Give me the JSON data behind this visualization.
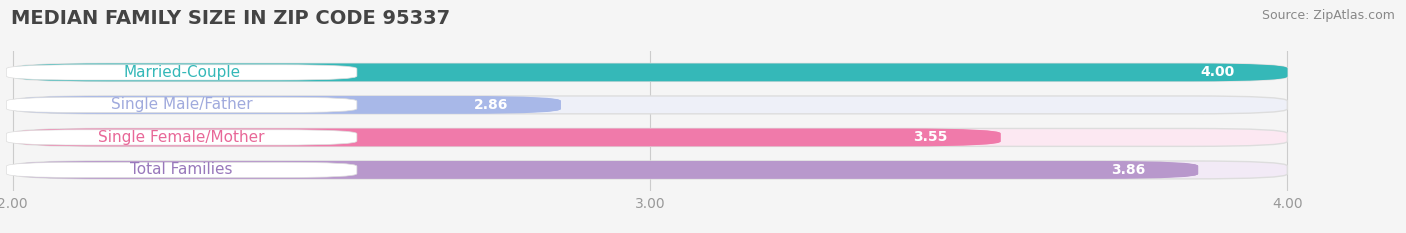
{
  "title": "MEDIAN FAMILY SIZE IN ZIP CODE 95337",
  "source": "Source: ZipAtlas.com",
  "categories": [
    "Married-Couple",
    "Single Male/Father",
    "Single Female/Mother",
    "Total Families"
  ],
  "values": [
    4.0,
    2.86,
    3.55,
    3.86
  ],
  "bar_colors": [
    "#35b8b8",
    "#a8b8e8",
    "#f07aaa",
    "#b898cc"
  ],
  "bar_bg_colors": [
    "#e8f6f6",
    "#eef0f8",
    "#fce8f2",
    "#f2eaf6"
  ],
  "label_text_colors": [
    "#35b8b8",
    "#a0aadd",
    "#e86898",
    "#9878bb"
  ],
  "value_bg_colors": [
    "#35b8b8",
    "#a8b8e8",
    "#f07aaa",
    "#b898cc"
  ],
  "xlim": [
    2.0,
    4.0
  ],
  "xticks": [
    2.0,
    3.0,
    4.0
  ],
  "xtick_labels": [
    "2.00",
    "3.00",
    "4.00"
  ],
  "title_fontsize": 14,
  "source_fontsize": 9,
  "label_fontsize": 11,
  "value_fontsize": 10,
  "tick_fontsize": 10,
  "background_color": "#f5f5f5",
  "bar_height": 0.55,
  "label_box_color": "#ffffff"
}
